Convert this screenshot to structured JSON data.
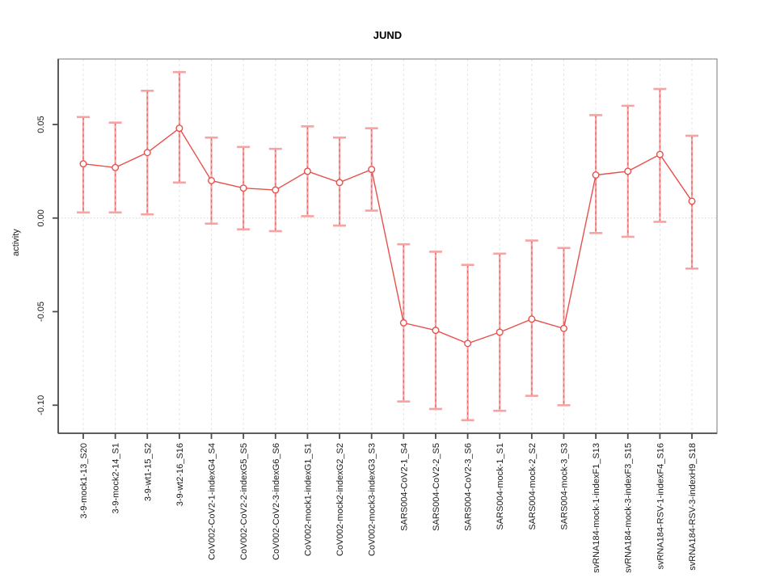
{
  "chart_data": {
    "type": "line",
    "title": "JUND",
    "xlabel": "",
    "ylabel": "activity",
    "legend": "none",
    "grid": "vertical-dashed-plus-zero-dotted",
    "y_ticks": [
      0.05,
      0.0,
      -0.05,
      -0.1
    ],
    "y_tick_labels": [
      "0.05",
      "0.00",
      "-0.05",
      "-0.10"
    ],
    "ylim": [
      -0.115,
      0.085
    ],
    "categories": [
      "3-9-mock1-13_S20",
      "3-9-mock2-14_S1",
      "3-9-wt1-15_S2",
      "3-9-wt2-16_S16",
      "CoV002-CoV2-1-indexG4_S4",
      "CoV002-CoV2-2-indexG5_S5",
      "CoV002-CoV2-3-indexG6_S6",
      "CoV002-mock1-indexG1_S1",
      "CoV002-mock2-indexG2_S2",
      "CoV002-mock3-indexG3_S3",
      "SARS004-CoV2-1_S4",
      "SARS004-CoV2-2_S5",
      "SARS004-CoV2-3_S6",
      "SARS004-mock-1_S1",
      "SARS004-mock-2_S2",
      "SARS004-mock-3_S3",
      "svRNA184-mock-1-indexF1_S13",
      "svRNA184-mock-3-indexF3_S15",
      "svRNA184-RSV-1-indexF4_S16",
      "svRNA184-RSV-3-indexH9_S18"
    ],
    "series": [
      {
        "name": "activity",
        "values": [
          0.029,
          0.027,
          0.035,
          0.048,
          0.02,
          0.016,
          0.015,
          0.025,
          0.019,
          0.026,
          -0.056,
          -0.06,
          -0.067,
          -0.061,
          -0.054,
          -0.059,
          0.023,
          0.025,
          0.034,
          0.009
        ],
        "error_upper": [
          0.054,
          0.051,
          0.068,
          0.078,
          0.043,
          0.038,
          0.037,
          0.049,
          0.043,
          0.048,
          -0.014,
          -0.018,
          -0.025,
          -0.019,
          -0.012,
          -0.016,
          0.055,
          0.06,
          0.069,
          0.044
        ],
        "error_lower": [
          0.003,
          0.003,
          0.002,
          0.019,
          -0.003,
          -0.006,
          -0.007,
          0.001,
          -0.004,
          0.004,
          -0.098,
          -0.102,
          -0.108,
          -0.103,
          -0.095,
          -0.1,
          -0.008,
          -0.01,
          -0.002,
          -0.027
        ]
      }
    ],
    "colors": {
      "line": "#e8504c",
      "point_fill": "#ffffff",
      "error_bar": "#f5a3a3",
      "error_dash": "#e8504c",
      "grid": "#e3e3e3",
      "zero_line": "#cfcfcf",
      "frame": "#a6a6a6",
      "axis": "#4d4d4d",
      "tick_text": "#1a1a1a"
    }
  }
}
